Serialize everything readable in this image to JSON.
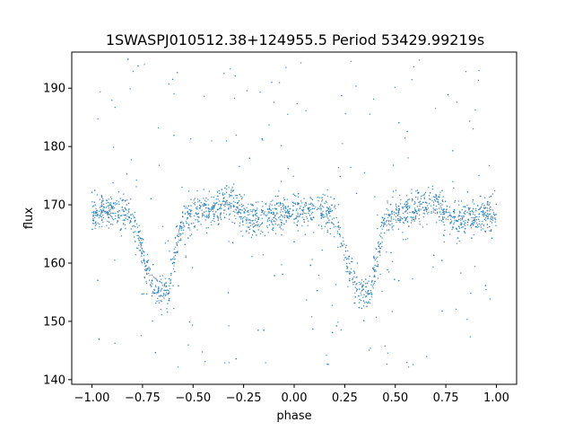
{
  "chart_data": {
    "type": "scatter",
    "title": "1SWASPJ010512.38+124955.5 Period 53429.99219s",
    "xlabel": "phase",
    "ylabel": "flux",
    "xlim": [
      -1.1,
      1.1
    ],
    "ylim": [
      139.2,
      196.2
    ],
    "x_ticks": [
      -1.0,
      -0.75,
      -0.5,
      -0.25,
      0.0,
      0.25,
      0.5,
      0.75,
      1.0
    ],
    "x_tick_labels": [
      "−1.00",
      "−0.75",
      "−0.50",
      "−0.25",
      "0.00",
      "0.25",
      "0.50",
      "0.75",
      "1.00"
    ],
    "y_ticks": [
      140,
      150,
      160,
      170,
      180,
      190
    ],
    "y_tick_labels": [
      "140",
      "150",
      "160",
      "170",
      "180",
      "190"
    ],
    "grid": false,
    "legend": "none",
    "point_color": "#1f77b4",
    "series": [
      {
        "x": [
          -1.0,
          -0.95,
          -0.9,
          -0.85,
          -0.8,
          -0.75,
          -0.7,
          -0.68,
          -0.65,
          -0.62,
          -0.6,
          -0.55,
          -0.5,
          -0.45,
          -0.4,
          -0.35,
          -0.3,
          -0.25,
          -0.2,
          -0.15,
          -0.1,
          -0.05,
          0.0,
          0.05,
          0.1,
          0.15,
          0.2,
          0.25,
          0.3,
          0.32,
          0.35,
          0.38,
          0.4,
          0.45,
          0.5,
          0.55,
          0.6,
          0.65,
          0.7,
          0.75,
          0.8,
          0.85,
          0.9,
          0.95,
          1.0
        ],
        "y": [
          168.5,
          169.0,
          169.2,
          169.0,
          168.2,
          162.0,
          156.0,
          155.2,
          155.0,
          155.5,
          160.0,
          167.5,
          169.0,
          168.8,
          169.5,
          170.0,
          170.3,
          168.5,
          167.5,
          167.8,
          168.2,
          168.8,
          169.0,
          169.0,
          169.2,
          169.0,
          168.2,
          162.0,
          156.0,
          155.2,
          155.0,
          155.5,
          160.0,
          167.5,
          169.0,
          168.8,
          169.5,
          170.0,
          170.3,
          168.5,
          167.5,
          167.8,
          168.2,
          168.8,
          168.5
        ]
      }
    ]
  }
}
